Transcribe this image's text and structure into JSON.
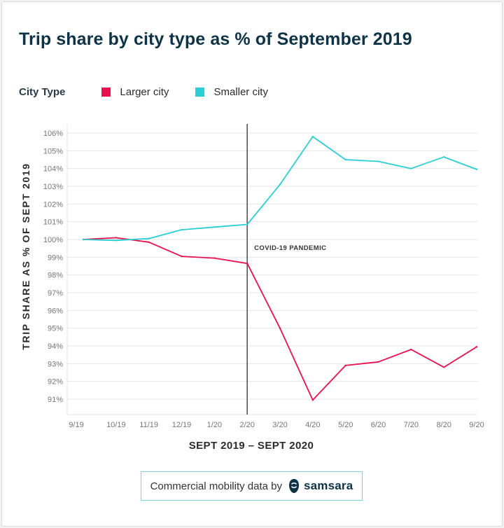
{
  "colors": {
    "larger": "#e8114e",
    "smaller": "#2ccdd3",
    "title": "#0f3346",
    "grid": "#e6e6e6",
    "axis_text": "#757575",
    "event_line": "#555555"
  },
  "legend": {
    "title": "City Type",
    "items": [
      {
        "label": "Larger city",
        "color": "#e8114e"
      },
      {
        "label": "Smaller city",
        "color": "#2ccdd3"
      }
    ]
  },
  "footer": {
    "text": "Commercial mobility data by",
    "brand": "samsara",
    "brand_icon": "samsara-logo-icon"
  },
  "chart_data": {
    "type": "line",
    "title": "Trip share by city type as % of September 2019",
    "xlabel": "SEPT 2019 – SEPT 2020",
    "ylabel": "TRIP SHARE AS % OF SEPT 2019",
    "categories": [
      "9/19",
      "10/19",
      "11/19",
      "12/19",
      "1/20",
      "2/20",
      "3/20",
      "4/20",
      "5/20",
      "6/20",
      "7/20",
      "8/20",
      "9/20"
    ],
    "y_ticks": [
      91,
      92,
      93,
      94,
      95,
      96,
      97,
      98,
      99,
      100,
      101,
      102,
      103,
      104,
      105,
      106
    ],
    "y_tick_suffix": "%",
    "ylim": [
      90.2,
      106.5
    ],
    "grid": true,
    "series": [
      {
        "name": "Larger city",
        "color": "#e8114e",
        "values": [
          100.0,
          100.1,
          99.85,
          99.05,
          98.95,
          98.65,
          95.0,
          90.95,
          92.9,
          93.1,
          93.8,
          92.8,
          93.95
        ]
      },
      {
        "name": "Smaller city",
        "color": "#2ccdd3",
        "values": [
          100.0,
          99.95,
          100.05,
          100.55,
          100.7,
          100.85,
          103.1,
          105.8,
          104.5,
          104.4,
          104.0,
          104.65,
          103.95
        ]
      }
    ],
    "annotations": [
      {
        "x": "2/20",
        "label": "COVID-19 PANDEMIC"
      }
    ]
  }
}
